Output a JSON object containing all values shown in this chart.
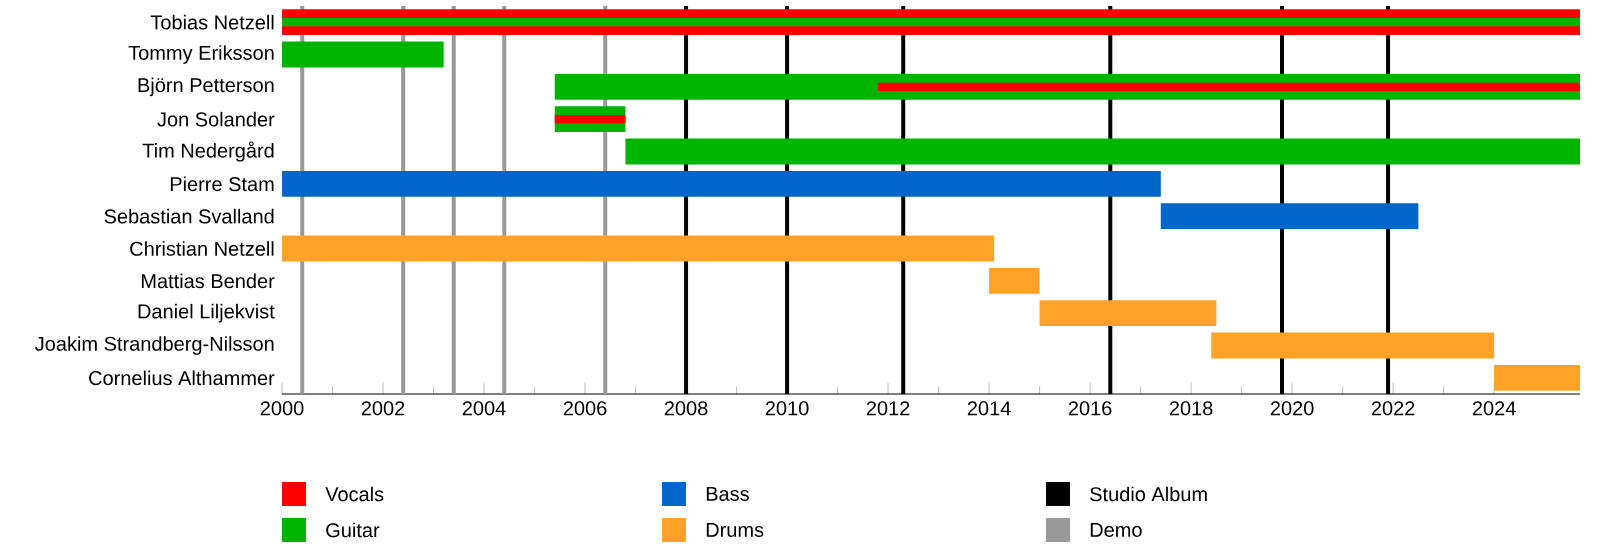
{
  "chart_data": {
    "type": "bar",
    "orientation": "horizontal",
    "legend": "bottom",
    "categories": [
      "Tobias Netzell",
      "Tommy Eriksson",
      "Björn Petterson",
      "Jon Solander",
      "Tim Nedergård",
      "Pierre Stam",
      "Sebastian Svalland",
      "Christian Netzell",
      "Mattias Bender",
      "Daniel Liljekvist",
      "Joakim Strandberg-Nilsson",
      "Cornelius Althammer"
    ],
    "xlim": [
      2000,
      2025.7
    ],
    "xticks": [
      2000,
      2002,
      2004,
      2006,
      2008,
      2010,
      2012,
      2014,
      2016,
      2018,
      2020,
      2022,
      2024
    ],
    "series": [
      {
        "name": "Vocals",
        "color": "#ff0000",
        "values": [
          25.7,
          null,
          null,
          null,
          null,
          null,
          null,
          null,
          null,
          null,
          null,
          null
        ],
        "base": [
          2000,
          null,
          null,
          null,
          null,
          null,
          null,
          null,
          null,
          null,
          null,
          null
        ]
      },
      {
        "name": "Guitar",
        "color": "#00b400",
        "values": [
          null,
          3.2,
          20.3,
          1.4,
          18.9,
          null,
          null,
          null,
          null,
          null,
          null,
          null
        ],
        "base": [
          null,
          2000,
          2005.4,
          2005.4,
          2006.8,
          null,
          null,
          null,
          null,
          null,
          null,
          null
        ]
      },
      {
        "name": "Bass",
        "color": "#0066cc",
        "values": [
          null,
          null,
          null,
          null,
          null,
          17.4,
          5.1,
          null,
          null,
          null,
          null,
          null
        ],
        "base": [
          null,
          null,
          null,
          null,
          null,
          2000,
          2017.4,
          null,
          null,
          null,
          null,
          null
        ]
      },
      {
        "name": "Drums",
        "color": "#ffa126",
        "values": [
          null,
          null,
          null,
          null,
          null,
          null,
          null,
          14.1,
          1.0,
          3.5,
          5.6,
          1.7
        ],
        "base": [
          null,
          null,
          null,
          null,
          null,
          null,
          null,
          2000,
          2014.0,
          2015.0,
          2018.4,
          2024.0
        ]
      },
      {
        "color": "#00b400",
        "values": [
          25.7,
          null,
          null,
          null,
          null,
          null,
          null,
          null,
          null,
          null,
          null,
          null
        ],
        "base": [
          2000,
          null,
          null,
          null,
          null,
          null,
          null,
          null,
          null,
          null,
          null,
          null
        ]
      },
      {
        "color": "#ff0000",
        "values": [
          null,
          null,
          13.9,
          1.4,
          null,
          null,
          null,
          null,
          null,
          null,
          null,
          null
        ],
        "base": [
          null,
          null,
          2011.8,
          2005.4,
          null,
          null,
          null,
          null,
          null,
          null,
          null,
          null
        ]
      }
    ],
    "ref_lines": [
      {
        "axis": "x",
        "value": 2008.0,
        "label": "Studio Album",
        "color": "#000000"
      },
      {
        "axis": "x",
        "value": 2010.0,
        "color": "#000000"
      },
      {
        "axis": "x",
        "value": 2012.3,
        "color": "#000000"
      },
      {
        "axis": "x",
        "value": 2016.4,
        "color": "#000000"
      },
      {
        "axis": "x",
        "value": 2019.8,
        "color": "#000000"
      },
      {
        "axis": "x",
        "value": 2021.9,
        "color": "#000000"
      },
      {
        "axis": "x",
        "value": 2000.4,
        "label": "Demo",
        "color": "#999999"
      },
      {
        "axis": "x",
        "value": 2002.4,
        "color": "#999999"
      },
      {
        "axis": "x",
        "value": 2003.4,
        "color": "#999999"
      },
      {
        "axis": "x",
        "value": 2004.4,
        "color": "#999999"
      },
      {
        "axis": "x",
        "value": 2006.4,
        "color": "#999999"
      }
    ]
  }
}
